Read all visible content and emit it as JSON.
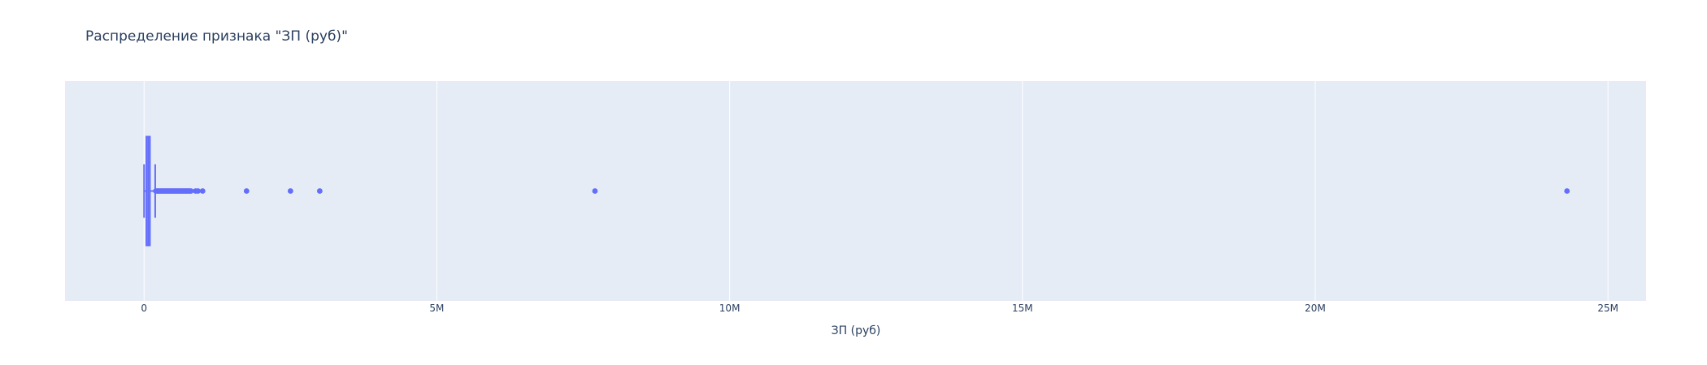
{
  "chart_data": {
    "type": "box",
    "orientation": "horizontal",
    "title": "Распределение признака \"ЗП (руб)\"",
    "xlabel": "ЗП (руб)",
    "ylabel": "",
    "xlim": [
      -1350000,
      25650000
    ],
    "x_ticks": [
      0,
      5000000,
      10000000,
      15000000,
      20000000,
      25000000
    ],
    "x_tick_labels": [
      "0",
      "5M",
      "10M",
      "15M",
      "20M",
      "25M"
    ],
    "grid": true,
    "legend": "none",
    "box": {
      "lower_fence": 0,
      "q1": 40000,
      "median": 70000,
      "q3": 100000,
      "upper_fence": 190000
    },
    "outliers": [
      200000,
      220000,
      240000,
      260000,
      280000,
      300000,
      320000,
      340000,
      360000,
      380000,
      400000,
      420000,
      440000,
      460000,
      480000,
      500000,
      520000,
      540000,
      560000,
      580000,
      600000,
      620000,
      640000,
      660000,
      680000,
      700000,
      720000,
      740000,
      760000,
      780000,
      800000,
      880000,
      920000,
      1000000,
      1750000,
      2500000,
      3000000,
      7700000,
      24300000
    ],
    "colors": {
      "trace": "#636efa",
      "plot_background": "#e5ecf6",
      "grid": "#ffffff",
      "text": "#2a3f5f"
    }
  }
}
